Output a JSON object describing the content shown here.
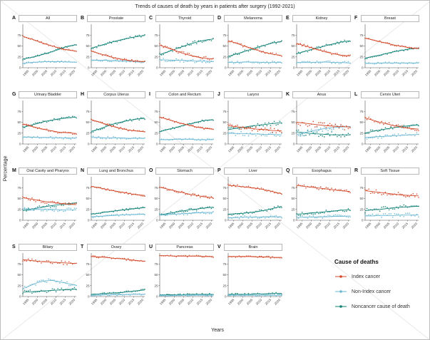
{
  "figure": {
    "title": "Trends of causes of death by years in patients after surgery (1992-2021)",
    "x_label": "Years",
    "y_label": "Percentage",
    "y_ticks": [
      0,
      25,
      50,
      75
    ]
  },
  "legend": {
    "title": "Cause of deaths",
    "entries": [
      {
        "label": "Index cancer",
        "color": "#d2492a"
      },
      {
        "label": "Non-Index cancer",
        "color": "#6ab7d2"
      },
      {
        "label": "Noncancer cause of death",
        "color": "#108175"
      }
    ]
  },
  "chart_data": {
    "type": "scatter",
    "subtype": "yearly points with linear trend lines, small-multiple facets",
    "x_range": [
      1992,
      2021
    ],
    "y_range": [
      0,
      100
    ],
    "x_tick_years": [
      1995,
      2000,
      2005,
      2010,
      2015,
      2020
    ],
    "x_years": [
      1992,
      1996,
      2000,
      2004,
      2008,
      2012,
      2016,
      2021
    ],
    "series_keys": [
      "index_cancer",
      "non_index_cancer",
      "noncancer"
    ],
    "series_names": [
      "Index cancer",
      "Non-Index cancer",
      "Noncancer cause of death"
    ],
    "panels": [
      {
        "letter": "A",
        "title": "All",
        "noise": 2,
        "series": {
          "index_cancer": [
            72,
            67,
            61,
            55,
            50,
            45,
            41,
            38
          ],
          "non_index_cancer": [
            10,
            12,
            13,
            14,
            14,
            14,
            13,
            13
          ],
          "noncancer": [
            20,
            23,
            27,
            32,
            37,
            43,
            49,
            53
          ]
        }
      },
      {
        "letter": "B",
        "title": "Prostate",
        "noise": 2.5,
        "series": {
          "index_cancer": [
            38,
            33,
            28,
            23,
            20,
            17,
            15,
            14
          ],
          "non_index_cancer": [
            18,
            17,
            17,
            16,
            16,
            15,
            14,
            13
          ],
          "noncancer": [
            45,
            50,
            55,
            60,
            64,
            68,
            71,
            74
          ]
        }
      },
      {
        "letter": "C",
        "title": "Thyroid",
        "noise": 4,
        "series": {
          "index_cancer": [
            52,
            46,
            40,
            34,
            29,
            25,
            22,
            20
          ],
          "non_index_cancer": [
            18,
            18,
            17,
            17,
            16,
            15,
            15,
            14
          ],
          "noncancer": [
            30,
            36,
            42,
            48,
            54,
            59,
            63,
            66
          ]
        }
      },
      {
        "letter": "D",
        "title": "Melanoma",
        "noise": 3,
        "series": {
          "index_cancer": [
            62,
            57,
            51,
            45,
            40,
            35,
            31,
            28
          ],
          "non_index_cancer": [
            12,
            12,
            13,
            13,
            13,
            12,
            12,
            12
          ],
          "noncancer": [
            26,
            31,
            36,
            42,
            47,
            52,
            57,
            60
          ]
        }
      },
      {
        "letter": "E",
        "title": "Kidney",
        "noise": 3,
        "series": {
          "index_cancer": [
            56,
            51,
            46,
            41,
            36,
            32,
            29,
            27
          ],
          "non_index_cancer": [
            12,
            12,
            12,
            13,
            13,
            12,
            12,
            11
          ],
          "noncancer": [
            32,
            37,
            42,
            46,
            51,
            55,
            59,
            62
          ]
        }
      },
      {
        "letter": "F",
        "title": "Breast",
        "noise": 2,
        "series": {
          "index_cancer": [
            68,
            64,
            60,
            56,
            52,
            49,
            46,
            44
          ],
          "non_index_cancer": [
            10,
            10,
            11,
            11,
            11,
            11,
            11,
            11
          ],
          "noncancer": [
            22,
            26,
            29,
            33,
            37,
            40,
            43,
            45
          ]
        }
      },
      {
        "letter": "G",
        "title": "Urinary Bladder",
        "noise": 2.5,
        "series": {
          "index_cancer": [
            46,
            41,
            37,
            33,
            30,
            27,
            26,
            24
          ],
          "non_index_cancer": [
            16,
            16,
            15,
            15,
            15,
            14,
            14,
            13
          ],
          "noncancer": [
            38,
            43,
            47,
            52,
            55,
            58,
            60,
            62
          ]
        }
      },
      {
        "letter": "H",
        "title": "Corpus Uterus",
        "noise": 3,
        "series": {
          "index_cancer": [
            56,
            51,
            45,
            40,
            36,
            32,
            30,
            28
          ],
          "non_index_cancer": [
            15,
            15,
            14,
            14,
            14,
            13,
            13,
            13
          ],
          "noncancer": [
            29,
            34,
            40,
            46,
            50,
            54,
            57,
            59
          ]
        }
      },
      {
        "letter": "I",
        "title": "Colon and Rectum",
        "noise": 2,
        "series": {
          "index_cancer": [
            62,
            57,
            52,
            47,
            43,
            39,
            36,
            34
          ],
          "non_index_cancer": [
            10,
            10,
            11,
            11,
            11,
            10,
            10,
            10
          ],
          "noncancer": [
            28,
            33,
            37,
            42,
            46,
            50,
            54,
            56
          ]
        }
      },
      {
        "letter": "J",
        "title": "Larynx",
        "noise": 5,
        "series": {
          "index_cancer": [
            42,
            40,
            38,
            36,
            34,
            33,
            31,
            30
          ],
          "non_index_cancer": [
            25,
            24,
            24,
            23,
            23,
            22,
            22,
            21
          ],
          "noncancer": [
            33,
            36,
            38,
            41,
            43,
            45,
            47,
            49
          ]
        }
      },
      {
        "letter": "K",
        "title": "Anus",
        "noise": 7,
        "series": {
          "index_cancer": [
            50,
            48,
            46,
            44,
            42,
            41,
            40,
            39
          ],
          "non_index_cancer": [
            22,
            26,
            30,
            33,
            36,
            38,
            39,
            40
          ],
          "noncancer": [
            28,
            26,
            24,
            23,
            22,
            21,
            21,
            21
          ]
        }
      },
      {
        "letter": "L",
        "title": "Cervix Uteri",
        "noise": 4,
        "series": {
          "index_cancer": [
            60,
            55,
            50,
            46,
            42,
            39,
            36,
            34
          ],
          "non_index_cancer": [
            15,
            16,
            17,
            18,
            19,
            20,
            21,
            22
          ],
          "noncancer": [
            25,
            29,
            32,
            35,
            38,
            40,
            42,
            44
          ]
        }
      },
      {
        "letter": "M",
        "title": "Oral Cavity and Pharynx",
        "noise": 4,
        "series": {
          "index_cancer": [
            52,
            49,
            46,
            43,
            41,
            39,
            37,
            36
          ],
          "non_index_cancer": [
            26,
            26,
            25,
            25,
            25,
            24,
            24,
            24
          ],
          "noncancer": [
            22,
            25,
            28,
            31,
            34,
            36,
            38,
            40
          ]
        }
      },
      {
        "letter": "N",
        "title": "Lung and Bronchus",
        "noise": 2,
        "series": {
          "index_cancer": [
            78,
            75,
            71,
            68,
            65,
            62,
            59,
            57
          ],
          "non_index_cancer": [
            8,
            9,
            10,
            11,
            12,
            13,
            13,
            14
          ],
          "noncancer": [
            14,
            16,
            19,
            21,
            23,
            25,
            27,
            29
          ]
        }
      },
      {
        "letter": "O",
        "title": "Stomach",
        "noise": 3,
        "series": {
          "index_cancer": [
            76,
            72,
            68,
            64,
            60,
            57,
            54,
            52
          ],
          "non_index_cancer": [
            12,
            13,
            14,
            15,
            16,
            17,
            18,
            18
          ],
          "noncancer": [
            12,
            15,
            18,
            21,
            24,
            26,
            28,
            30
          ]
        }
      },
      {
        "letter": "P",
        "title": "Liver",
        "noise": 3,
        "series": {
          "index_cancer": [
            80,
            79,
            77,
            75,
            73,
            70,
            66,
            61
          ],
          "non_index_cancer": [
            6,
            6,
            7,
            7,
            7,
            8,
            8,
            8
          ],
          "noncancer": [
            14,
            15,
            16,
            18,
            20,
            23,
            27,
            32
          ]
        }
      },
      {
        "letter": "Q",
        "title": "Esophagus",
        "noise": 3.5,
        "series": {
          "index_cancer": [
            80,
            78,
            76,
            74,
            72,
            70,
            68,
            66
          ],
          "non_index_cancer": [
            6,
            7,
            7,
            8,
            8,
            9,
            9,
            10
          ],
          "noncancer": [
            14,
            15,
            17,
            18,
            20,
            21,
            23,
            24
          ]
        }
      },
      {
        "letter": "R",
        "title": "Soft Tissue",
        "noise": 5,
        "series": {
          "index_cancer": [
            68,
            66,
            64,
            62,
            60,
            58,
            57,
            56
          ],
          "non_index_cancer": [
            10,
            10,
            11,
            11,
            11,
            12,
            12,
            12
          ],
          "noncancer": [
            22,
            24,
            25,
            27,
            29,
            30,
            31,
            32
          ]
        }
      },
      {
        "letter": "S",
        "title": "Biliary",
        "noise": 4,
        "series": {
          "index_cancer": [
            85,
            83,
            81,
            80,
            79,
            78,
            77,
            76
          ],
          "non_index_cancer": [
            18,
            25,
            32,
            36,
            37,
            34,
            30,
            26
          ],
          "noncancer": [
            10,
            11,
            12,
            13,
            14,
            15,
            16,
            17
          ]
        }
      },
      {
        "letter": "T",
        "title": "Ovary",
        "noise": 2,
        "series": {
          "index_cancer": [
            92,
            91,
            90,
            88,
            87,
            85,
            83,
            81
          ],
          "non_index_cancer": [
            3,
            3,
            4,
            4,
            4,
            5,
            5,
            5
          ],
          "noncancer": [
            5,
            6,
            7,
            8,
            9,
            11,
            13,
            15
          ]
        }
      },
      {
        "letter": "U",
        "title": "Pancreas",
        "noise": 2,
        "series": {
          "index_cancer": [
            94,
            94,
            93,
            93,
            93,
            93,
            92,
            92
          ],
          "non_index_cancer": [
            2,
            2,
            3,
            3,
            3,
            3,
            3,
            3
          ],
          "noncancer": [
            4,
            4,
            4,
            4,
            5,
            5,
            5,
            5
          ]
        }
      },
      {
        "letter": "V",
        "title": "Brain",
        "noise": 2,
        "series": {
          "index_cancer": [
            92,
            92,
            92,
            92,
            91,
            91,
            90,
            90
          ],
          "non_index_cancer": [
            3,
            3,
            3,
            3,
            3,
            3,
            3,
            3
          ],
          "noncancer": [
            5,
            5,
            5,
            5,
            6,
            6,
            7,
            7
          ]
        }
      }
    ]
  }
}
